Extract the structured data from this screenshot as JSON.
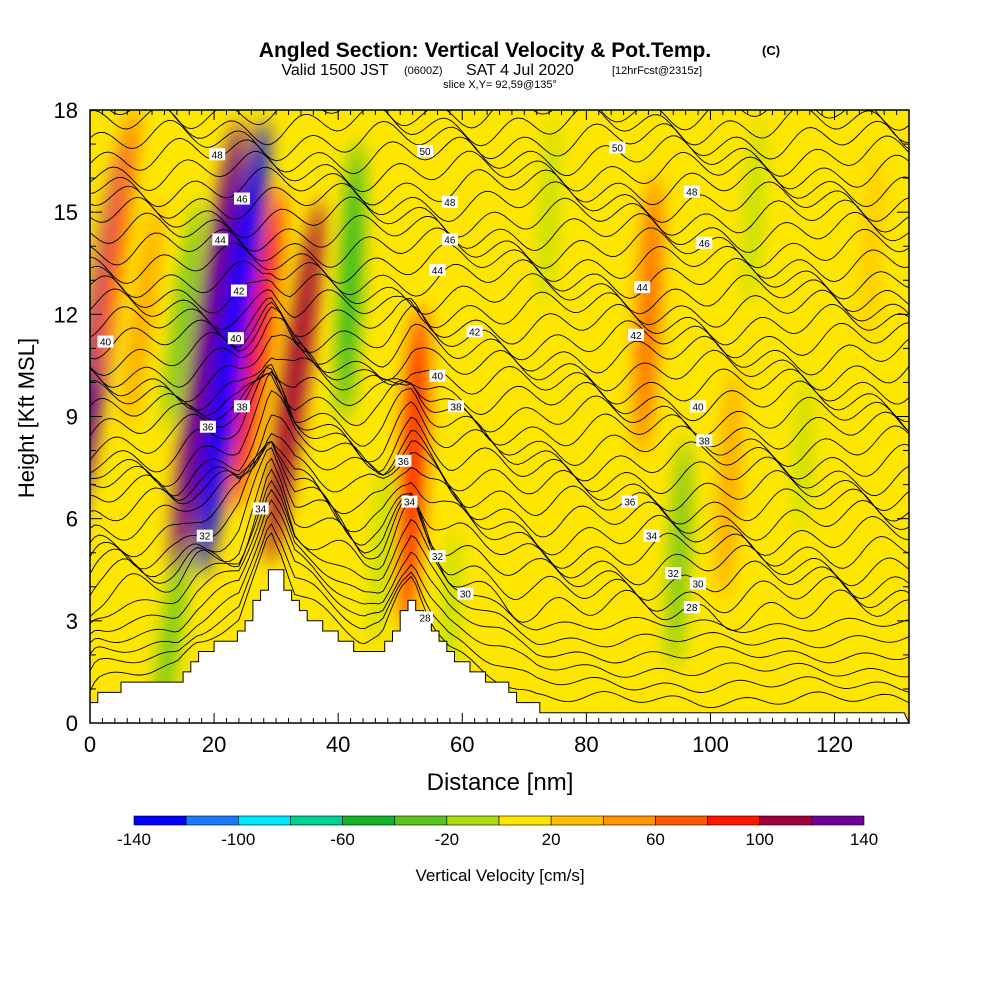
{
  "chart_data": {
    "type": "heatmap",
    "title": "Angled Section: Vertical Velocity & Pot.Temp.",
    "title_mark": "(C)",
    "subtitle_valid": "Valid 1500 JST",
    "subtitle_utc": "(0600Z)",
    "subtitle_date": "SAT 4 Jul 2020",
    "subtitle_run": "[12hrFcst@2315z]",
    "subtitle_slice": "slice X,Y= 92,59@135°",
    "xlabel": "Distance [nm]",
    "ylabel": "Height [Kft MSL]",
    "xlim": [
      0,
      132
    ],
    "ylim": [
      0,
      18
    ],
    "x_ticks": [
      "0",
      "20",
      "40",
      "60",
      "80",
      "100",
      "120"
    ],
    "y_ticks": [
      "0",
      "3",
      "6",
      "9",
      "12",
      "15",
      "18"
    ],
    "colorbar": {
      "label": "Vertical Velocity [cm/s]",
      "ticks": [
        "-140",
        "-100",
        "-60",
        "-20",
        "20",
        "60",
        "100",
        "140"
      ],
      "bins": [
        {
          "from": -140,
          "to": -120,
          "color": "#0000ff"
        },
        {
          "from": -120,
          "to": -100,
          "color": "#1c78ff"
        },
        {
          "from": -100,
          "to": -80,
          "color": "#00e6ff"
        },
        {
          "from": -80,
          "to": -60,
          "color": "#00d296"
        },
        {
          "from": -60,
          "to": -40,
          "color": "#14b428"
        },
        {
          "from": -40,
          "to": -20,
          "color": "#5ac31e"
        },
        {
          "from": -20,
          "to": 0,
          "color": "#aade10"
        },
        {
          "from": 0,
          "to": 20,
          "color": "#ffe600"
        },
        {
          "from": 20,
          "to": 40,
          "color": "#ffbe00"
        },
        {
          "from": 40,
          "to": 60,
          "color": "#ff9600"
        },
        {
          "from": 60,
          "to": 80,
          "color": "#ff5a00"
        },
        {
          "from": 80,
          "to": 100,
          "color": "#ff1400"
        },
        {
          "from": 100,
          "to": 120,
          "color": "#a0003c"
        },
        {
          "from": 120,
          "to": 140,
          "color": "#6e0096"
        }
      ]
    },
    "vertical_velocity_features": [
      {
        "x": 1,
        "z": 11,
        "w": 120
      },
      {
        "x": 4,
        "z": 14,
        "w": 60
      },
      {
        "x": 8.5,
        "z": 12,
        "w": 40
      },
      {
        "x": 13,
        "z": 2.5,
        "w": -40
      },
      {
        "x": 15,
        "z": 12,
        "w": -40
      },
      {
        "x": 19,
        "z": 11,
        "w": 140
      },
      {
        "x": 23,
        "z": 11,
        "w": -140
      },
      {
        "x": 27,
        "z": 11,
        "w": 80
      },
      {
        "x": 33,
        "z": 10,
        "w": 100
      },
      {
        "x": 42,
        "z": 13,
        "w": -60
      },
      {
        "x": 47,
        "z": 5,
        "w": -20
      },
      {
        "x": 52,
        "z": 7.5,
        "w": 80
      },
      {
        "x": 58,
        "z": 3,
        "w": -20
      },
      {
        "x": 74,
        "z": 15,
        "w": -20
      },
      {
        "x": 90,
        "z": 12,
        "w": 60
      },
      {
        "x": 95,
        "z": 5,
        "w": -40
      },
      {
        "x": 103,
        "z": 7,
        "w": 40
      },
      {
        "x": 107,
        "z": 15,
        "w": -20
      },
      {
        "x": 115,
        "z": 8,
        "w": -10
      },
      {
        "x": 126,
        "z": 14,
        "w": 20
      }
    ],
    "isentrope_labels": [
      {
        "x": 20.5,
        "z": 16.7,
        "text": "48"
      },
      {
        "x": 24.5,
        "z": 15.4,
        "text": "46"
      },
      {
        "x": 21,
        "z": 14.2,
        "text": "44"
      },
      {
        "x": 24,
        "z": 12.7,
        "text": "42"
      },
      {
        "x": 23.5,
        "z": 11.3,
        "text": "40"
      },
      {
        "x": 2.5,
        "z": 11.2,
        "text": "40"
      },
      {
        "x": 24.5,
        "z": 9.3,
        "text": "38"
      },
      {
        "x": 19,
        "z": 8.7,
        "text": "36"
      },
      {
        "x": 18.5,
        "z": 5.5,
        "text": "32"
      },
      {
        "x": 27.5,
        "z": 6.3,
        "text": "34"
      },
      {
        "x": 54,
        "z": 16.8,
        "text": "50"
      },
      {
        "x": 58,
        "z": 15.3,
        "text": "48"
      },
      {
        "x": 58,
        "z": 14.2,
        "text": "46"
      },
      {
        "x": 56,
        "z": 13.3,
        "text": "44"
      },
      {
        "x": 62,
        "z": 11.5,
        "text": "42"
      },
      {
        "x": 56,
        "z": 10.2,
        "text": "40"
      },
      {
        "x": 59,
        "z": 9.3,
        "text": "38"
      },
      {
        "x": 50.5,
        "z": 7.7,
        "text": "36"
      },
      {
        "x": 51.5,
        "z": 6.5,
        "text": "34"
      },
      {
        "x": 56,
        "z": 4.9,
        "text": "32"
      },
      {
        "x": 60.5,
        "z": 3.8,
        "text": "30"
      },
      {
        "x": 54,
        "z": 3.1,
        "text": "28"
      },
      {
        "x": 85,
        "z": 16.9,
        "text": "50"
      },
      {
        "x": 97,
        "z": 15.6,
        "text": "48"
      },
      {
        "x": 99,
        "z": 14.1,
        "text": "46"
      },
      {
        "x": 89,
        "z": 12.8,
        "text": "44"
      },
      {
        "x": 88,
        "z": 11.4,
        "text": "42"
      },
      {
        "x": 98,
        "z": 9.3,
        "text": "40"
      },
      {
        "x": 99,
        "z": 8.3,
        "text": "38"
      },
      {
        "x": 87,
        "z": 6.5,
        "text": "36"
      },
      {
        "x": 90.5,
        "z": 5.5,
        "text": "34"
      },
      {
        "x": 94,
        "z": 4.4,
        "text": "32"
      },
      {
        "x": 98,
        "z": 4.1,
        "text": "30"
      },
      {
        "x": 97,
        "z": 3.4,
        "text": "28"
      }
    ],
    "terrain_profile": [
      [
        0,
        0.6
      ],
      [
        1,
        0.9
      ],
      [
        6,
        1.1
      ],
      [
        14,
        1.3
      ],
      [
        17,
        2
      ],
      [
        20,
        2.3
      ],
      [
        24,
        2.6
      ],
      [
        27,
        3.8
      ],
      [
        29,
        4.6
      ],
      [
        31,
        4.1
      ],
      [
        33,
        3.3
      ],
      [
        36,
        3
      ],
      [
        40,
        2.5
      ],
      [
        44,
        2
      ],
      [
        47,
        2.1
      ],
      [
        50,
        3.2
      ],
      [
        52,
        3.6
      ],
      [
        55,
        2.6
      ],
      [
        58,
        1.9
      ],
      [
        62,
        1.5
      ],
      [
        66,
        1.1
      ],
      [
        69,
        0.7
      ],
      [
        72,
        0.4
      ],
      [
        76,
        0.35
      ],
      [
        80,
        0.3
      ],
      [
        90,
        0.3
      ],
      [
        100,
        0.3
      ],
      [
        110,
        0.3
      ],
      [
        120,
        0.3
      ],
      [
        132,
        0.3
      ]
    ]
  }
}
